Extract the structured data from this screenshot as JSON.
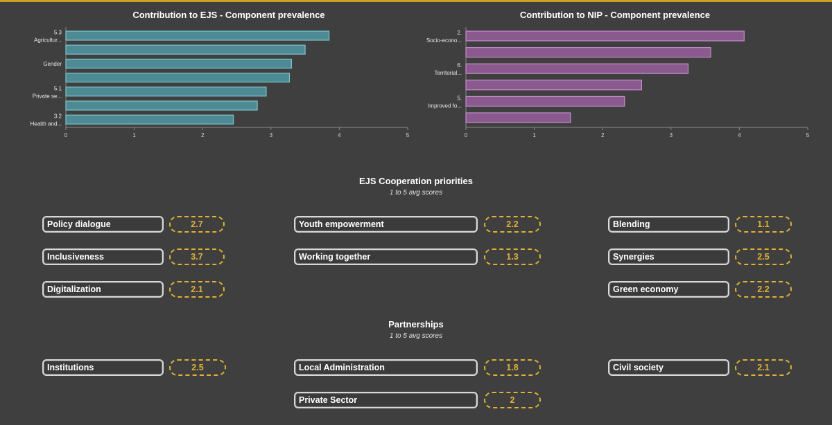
{
  "colors": {
    "background": "#3f3f3f",
    "ejs_bar": "#4d8a93",
    "ejs_bar_stroke": "#7fc4cc",
    "nip_bar": "#8a5a8f",
    "nip_bar_stroke": "#c48ccb",
    "score_accent": "#e3b234",
    "top_accent": "#c9a227"
  },
  "chart_data": [
    {
      "type": "bar",
      "orientation": "horizontal",
      "title": "Contribution to EJS - Component prevalence",
      "categories": [
        "5.3 Agricultur...",
        "",
        "Gender",
        "",
        "5.1 Private se...",
        "",
        "3.2 Health and..."
      ],
      "values": [
        3.85,
        3.5,
        3.3,
        3.27,
        2.93,
        2.8,
        2.45
      ],
      "xlim": [
        0,
        5
      ],
      "xticks": [
        "0",
        "1",
        "2",
        "3",
        "4",
        "5"
      ],
      "grid": false
    },
    {
      "type": "bar",
      "orientation": "horizontal",
      "title": "Contribution to NIP - Component prevalence",
      "categories": [
        "2. Socio-econo...",
        "",
        "6. Territorial...",
        "",
        "5. Improved fo...",
        ""
      ],
      "values": [
        4.07,
        3.58,
        3.25,
        2.57,
        2.32,
        1.53
      ],
      "xlim": [
        0,
        5
      ],
      "xticks": [
        "0",
        "1",
        "2",
        "3",
        "4",
        "5"
      ],
      "grid": false
    }
  ],
  "cooperation": {
    "title": "EJS Cooperation priorities",
    "subtitle": "1 to 5 avg scores",
    "items": [
      {
        "label": "Policy dialogue",
        "score": "2.7"
      },
      {
        "label": "Inclusiveness",
        "score": "3.7"
      },
      {
        "label": "Digitalization",
        "score": "2.1"
      },
      {
        "label": "Youth empowerment",
        "score": "2.2"
      },
      {
        "label": "Working together",
        "score": "1.3"
      },
      {
        "label": "Blending",
        "score": "1.1"
      },
      {
        "label": "Synergies",
        "score": "2.5"
      },
      {
        "label": "Green economy",
        "score": "2.2"
      }
    ]
  },
  "partnerships": {
    "title": "Partnerships",
    "subtitle": "1 to 5 avg scores",
    "items": [
      {
        "label": "Institutions",
        "score": "2.5"
      },
      {
        "label": "Local Administration",
        "score": "1.8"
      },
      {
        "label": "Private Sector",
        "score": "2"
      },
      {
        "label": "Civil society",
        "score": "2.1"
      }
    ]
  }
}
